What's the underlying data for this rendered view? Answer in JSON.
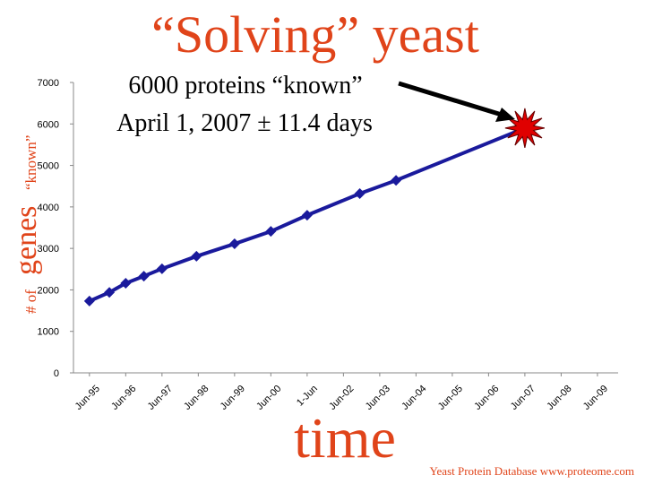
{
  "chart_data": {
    "type": "line",
    "title": "“Solving” yeast",
    "ylabel_parts": [
      "# of",
      "genes",
      "“known”"
    ],
    "xlabel": "time",
    "footer": "Yeast Protein Database www.proteome.com",
    "annotations": [
      "6000 proteins “known”",
      "April 1, 2007 ± 11.4 days"
    ],
    "ylim": [
      0,
      7000
    ],
    "yticks": [
      0,
      1000,
      2000,
      3000,
      4000,
      5000,
      6000,
      7000
    ],
    "xlim": [
      1994.56,
      2009.57
    ],
    "xticks": [
      {
        "value": 1995,
        "label": "Jun-95"
      },
      {
        "value": 1996,
        "label": "Jun-96"
      },
      {
        "value": 1997,
        "label": "Jun-97"
      },
      {
        "value": 1998,
        "label": "Jun-98"
      },
      {
        "value": 1999,
        "label": "Jun-99"
      },
      {
        "value": 2000,
        "label": "Jun-00"
      },
      {
        "value": 2001,
        "label": "1-Jun"
      },
      {
        "value": 2002,
        "label": "Jun-02"
      },
      {
        "value": 2003,
        "label": "Jun-03"
      },
      {
        "value": 2004,
        "label": "Jun-04"
      },
      {
        "value": 2005,
        "label": "Jun-05"
      },
      {
        "value": 2006,
        "label": "Jun-06"
      },
      {
        "value": 2007,
        "label": "Jun-07"
      },
      {
        "value": 2008,
        "label": "Jun-08"
      },
      {
        "value": 2009,
        "label": "Jun-09"
      }
    ],
    "series": [
      {
        "color": "#1a1a9c",
        "x": [
          1995.0,
          1995.55,
          1996.0,
          1996.5,
          1997.0,
          1997.95,
          1999.0,
          2000.0,
          2001.0,
          2002.45,
          2003.45
        ],
        "values": [
          1730,
          1940,
          2160,
          2330,
          2510,
          2810,
          3110,
          3410,
          3800,
          4320,
          4640
        ]
      }
    ],
    "projection": {
      "x": 2007.0,
      "y": 5900,
      "color": "#e00000"
    }
  }
}
